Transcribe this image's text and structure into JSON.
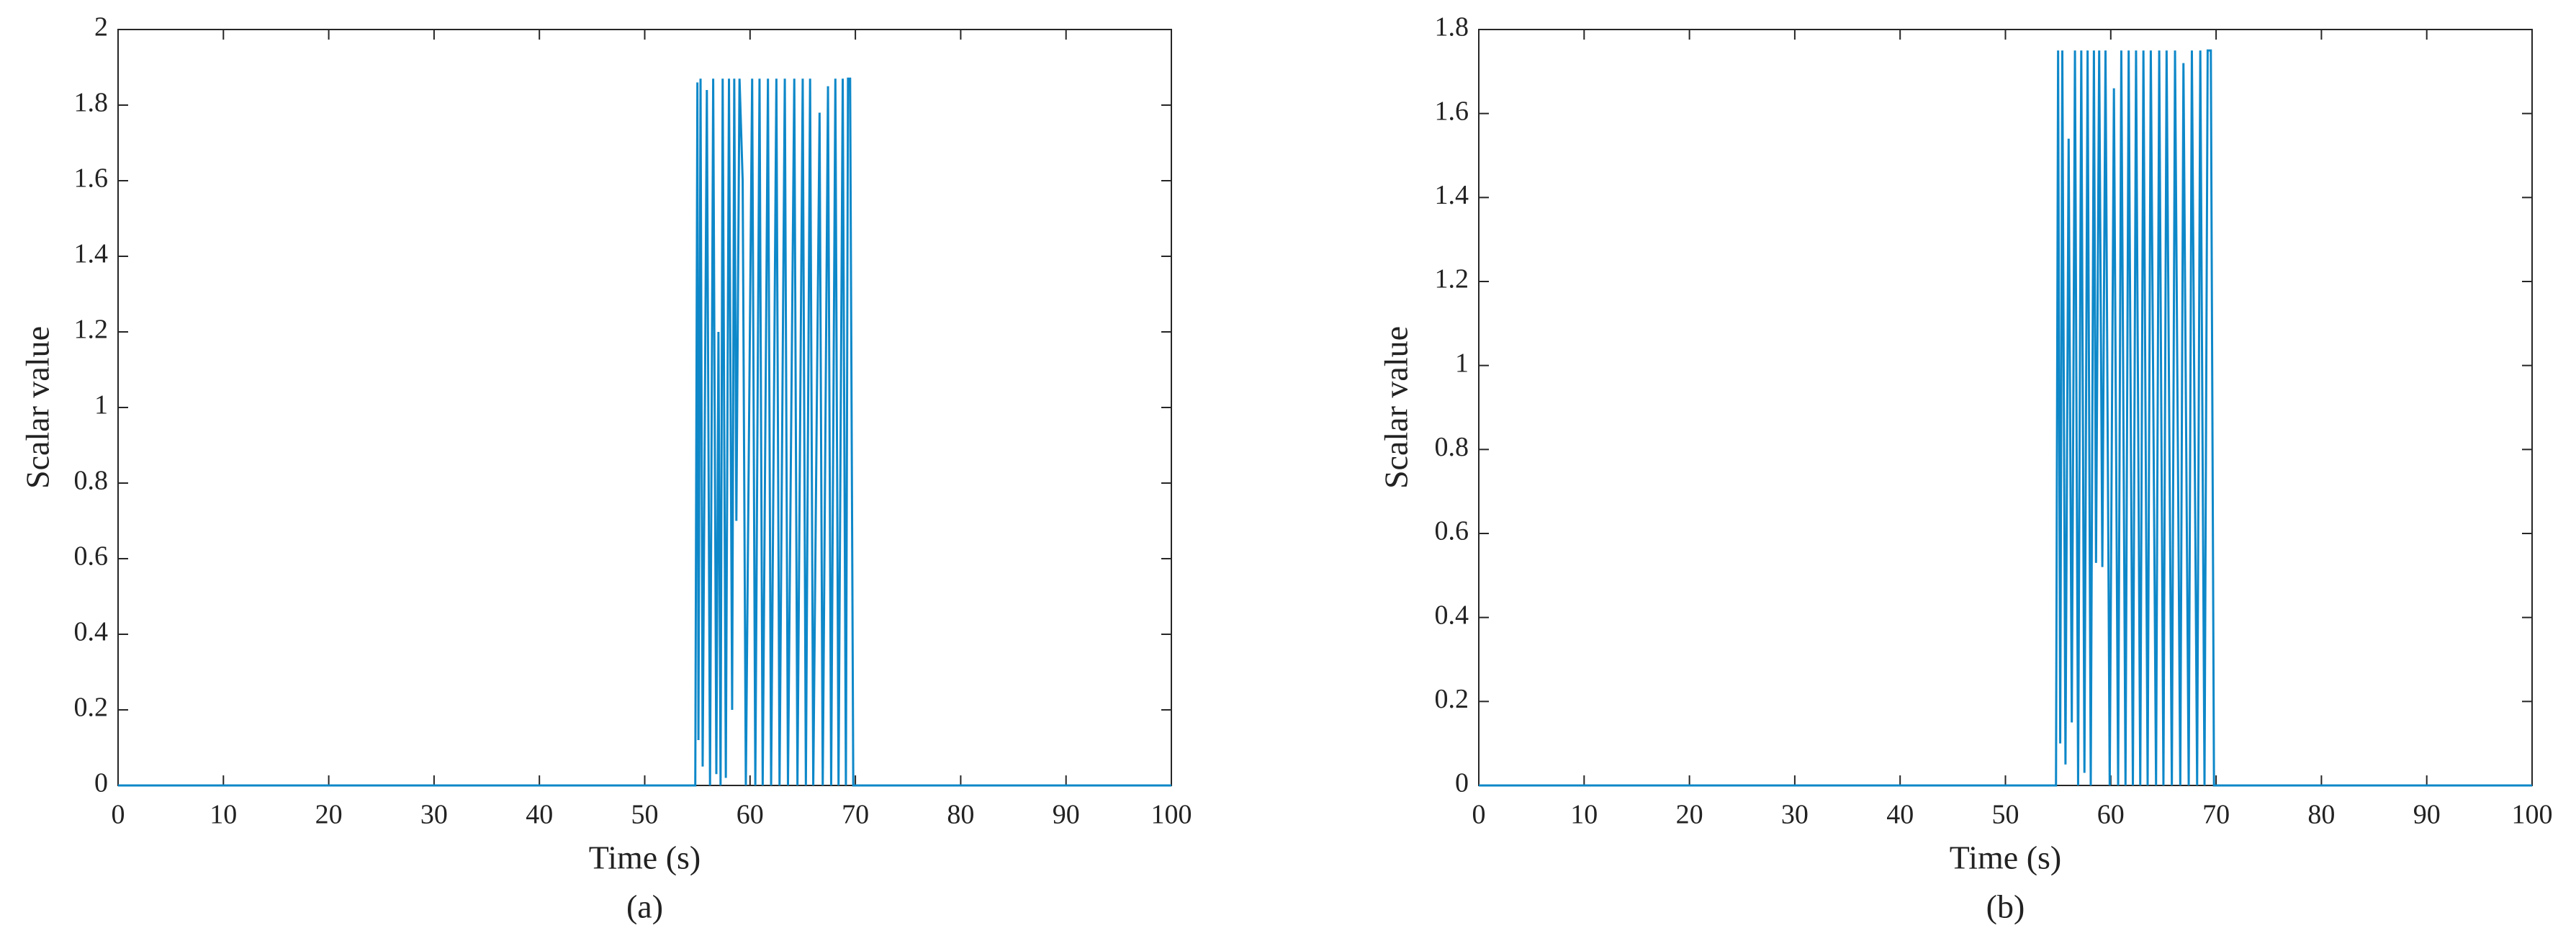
{
  "chart_data": [
    {
      "type": "line",
      "ylabel": "Scalar value",
      "xlabel": "Time (s)",
      "caption": "(a)",
      "color": "#0e88c9",
      "x": [
        0,
        54.8,
        55.0,
        55.1,
        55.3,
        55.5,
        55.9,
        56.2,
        56.5,
        56.8,
        57.0,
        57.2,
        57.4,
        57.7,
        58.0,
        58.3,
        58.5,
        58.7,
        59.0,
        59.3,
        59.6,
        60.2,
        60.5,
        60.9,
        61.2,
        61.7,
        62.0,
        62.5,
        62.8,
        63.3,
        63.6,
        64.2,
        64.5,
        65.0,
        65.3,
        65.7,
        66.0,
        66.6,
        66.9,
        67.4,
        67.7,
        68.1,
        68.4,
        68.8,
        69.1,
        69.3,
        69.5,
        69.8,
        70.2,
        100
      ],
      "values": [
        0,
        0,
        1.86,
        0.12,
        1.87,
        0.05,
        1.84,
        0,
        1.87,
        0.03,
        1.2,
        0,
        1.87,
        0.02,
        1.87,
        0.2,
        1.87,
        0.7,
        1.87,
        1.6,
        0,
        1.87,
        0,
        1.87,
        0,
        1.87,
        0,
        1.87,
        0,
        1.87,
        0,
        1.87,
        0,
        1.87,
        0,
        1.87,
        0,
        1.78,
        0,
        1.85,
        0,
        1.87,
        0,
        1.87,
        0,
        1.87,
        1.87,
        0,
        0,
        0
      ],
      "xlim": [
        0,
        100
      ],
      "xticks": [
        0,
        10,
        20,
        30,
        40,
        50,
        60,
        70,
        80,
        90,
        100
      ],
      "ylim": [
        0,
        2
      ],
      "yticks": [
        0,
        0.2,
        0.4,
        0.6,
        0.8,
        1,
        1.2,
        1.4,
        1.6,
        1.8,
        2
      ]
    },
    {
      "type": "line",
      "ylabel": "Scalar value",
      "xlabel": "Time (s)",
      "caption": "(b)",
      "color": "#0e88c9",
      "x": [
        0,
        54.8,
        55.0,
        55.2,
        55.4,
        55.7,
        56.0,
        56.3,
        56.6,
        56.9,
        57.2,
        57.5,
        57.8,
        58.1,
        58.4,
        58.6,
        58.9,
        59.2,
        59.5,
        59.9,
        60.3,
        60.7,
        61.0,
        61.4,
        61.7,
        62.1,
        62.4,
        62.8,
        63.1,
        63.5,
        63.8,
        64.3,
        64.6,
        65.0,
        65.3,
        65.8,
        66.1,
        66.6,
        66.9,
        67.4,
        67.7,
        68.2,
        68.5,
        68.9,
        69.2,
        69.5,
        69.8,
        100
      ],
      "values": [
        0,
        0,
        1.75,
        0.1,
        1.75,
        0.05,
        1.54,
        0.15,
        1.75,
        0,
        1.75,
        0.03,
        1.75,
        0,
        1.75,
        0.53,
        1.75,
        0.52,
        1.75,
        0,
        1.66,
        0,
        1.75,
        0,
        1.75,
        0,
        1.75,
        0,
        1.75,
        0,
        1.75,
        0,
        1.75,
        0,
        1.75,
        0,
        1.75,
        0,
        1.72,
        0,
        1.75,
        0,
        1.75,
        0,
        1.75,
        1.75,
        0,
        0
      ],
      "xlim": [
        0,
        100
      ],
      "xticks": [
        0,
        10,
        20,
        30,
        40,
        50,
        60,
        70,
        80,
        90,
        100
      ],
      "ylim": [
        0,
        1.8
      ],
      "yticks": [
        0,
        0.2,
        0.4,
        0.6,
        0.8,
        1,
        1.2,
        1.4,
        1.6,
        1.8
      ]
    }
  ]
}
